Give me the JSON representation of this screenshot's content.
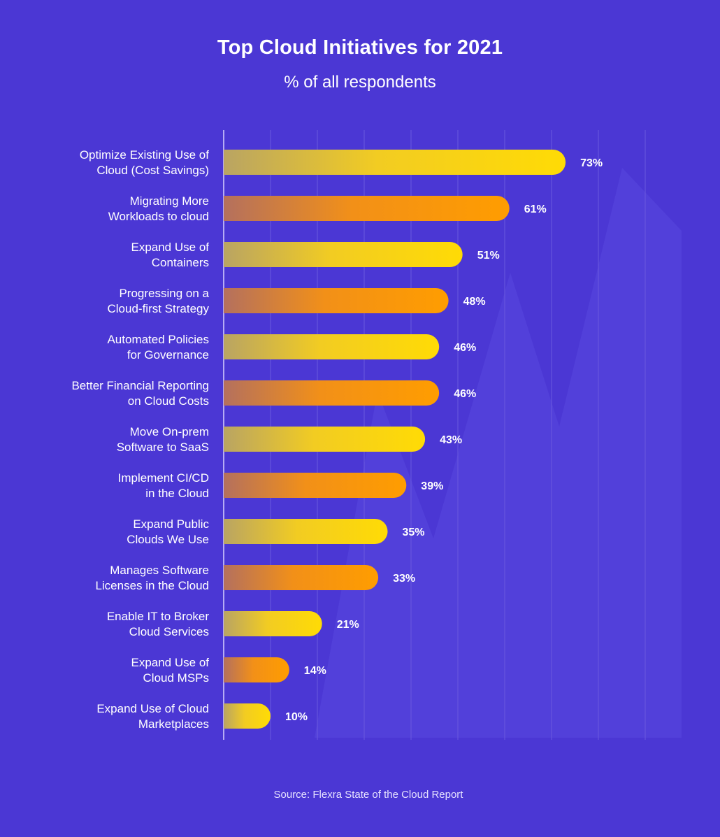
{
  "title": "Top Cloud Initiatives for 2021",
  "subtitle": "% of all respondents",
  "source": "Source: Flexra State of the Cloud Report",
  "colors": {
    "background": "#4b37d4",
    "bar_yellow": "#ffd60a",
    "bar_orange": "#ff9a00",
    "gridline": "#6a58de",
    "axis": "#d9d4ff"
  },
  "chart_data": {
    "type": "bar",
    "orientation": "horizontal",
    "title": "Top Cloud Initiatives for 2021",
    "subtitle": "% of all respondents",
    "categories": [
      [
        "Optimize Existing Use of",
        "Cloud (Cost Savings)"
      ],
      [
        "Migrating More",
        "Workloads to cloud"
      ],
      [
        "Expand Use of",
        "Containers"
      ],
      [
        "Progressing on a",
        "Cloud-first Strategy"
      ],
      [
        "Automated Policies",
        "for Governance"
      ],
      [
        "Better Financial Reporting",
        "on Cloud Costs"
      ],
      [
        "Move On-prem",
        "Software to SaaS"
      ],
      [
        "Implement CI/CD",
        "in the Cloud"
      ],
      [
        "Expand Public",
        "Clouds We Use"
      ],
      [
        "Manages Software",
        "Licenses in the Cloud"
      ],
      [
        "Enable IT to Broker",
        "Cloud Services"
      ],
      [
        "Expand Use of",
        "Cloud MSPs"
      ],
      [
        "Expand Use of Cloud",
        "Marketplaces"
      ]
    ],
    "values": [
      73,
      61,
      51,
      48,
      46,
      46,
      43,
      39,
      35,
      33,
      21,
      14,
      10
    ],
    "value_labels": [
      "73%",
      "61%",
      "51%",
      "48%",
      "46%",
      "46%",
      "43%",
      "39%",
      "35%",
      "33%",
      "21%",
      "14%",
      "10%"
    ],
    "bar_colors": [
      "yellow",
      "orange",
      "yellow",
      "orange",
      "yellow",
      "orange",
      "yellow",
      "orange",
      "yellow",
      "orange",
      "yellow",
      "orange",
      "yellow"
    ],
    "xlim": [
      0,
      100
    ],
    "grid": true,
    "legend": "none"
  }
}
